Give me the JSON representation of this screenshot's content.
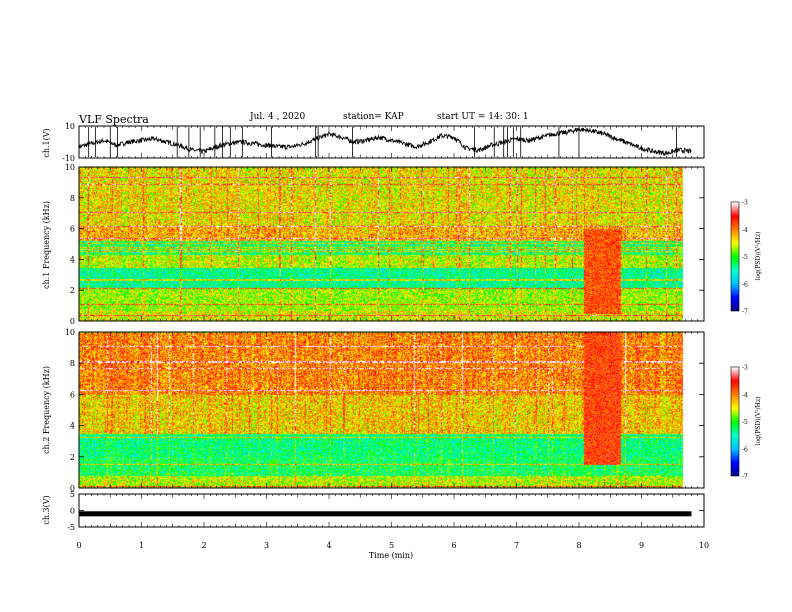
{
  "header": {
    "title": "VLF Spectra",
    "date": "Jul. 4 , 2020",
    "station": "station= KAP",
    "start": "start UT = 14: 30: 1"
  },
  "chart_data": [
    {
      "type": "line",
      "ylabel": "ch.1(V)",
      "ylim": [
        -10,
        10
      ],
      "ytick_labels": [
        "10",
        "-10"
      ],
      "xlim": [
        0,
        10
      ],
      "series": [
        {
          "x": [
            0,
            0.2,
            0.4,
            0.6,
            0.8,
            1,
            1.2,
            1.4,
            1.6,
            1.8,
            2,
            2.2,
            2.4,
            2.6,
            2.8,
            3,
            3.2,
            3.4,
            3.6,
            3.8,
            4,
            4.2,
            4.4,
            4.6,
            4.8,
            5,
            5.2,
            5.4,
            5.6,
            5.8,
            6,
            6.2,
            6.4,
            6.6,
            6.8,
            7,
            7.2,
            7.4,
            7.6,
            7.8,
            8,
            8.2,
            8.4,
            8.6,
            8.8,
            9,
            9.2,
            9.4,
            9.6,
            9.8
          ],
          "values": [
            -3,
            -1,
            1,
            -2,
            0,
            1,
            2,
            0,
            -2,
            -5,
            -6,
            -3,
            -1,
            0,
            -1,
            -2,
            -3,
            -3,
            -1,
            2,
            5,
            3,
            0,
            1,
            3,
            1,
            -1,
            -3,
            0,
            4,
            3,
            -4,
            -5,
            -2,
            0,
            2,
            1,
            3,
            5,
            6,
            8,
            7,
            5,
            2,
            -1,
            -4,
            -6,
            -7,
            -5,
            -6
          ]
        }
      ]
    },
    {
      "type": "heatmap",
      "ylabel": "ch.1 Frequency (kHz)",
      "ylim": [
        0,
        10
      ],
      "ytick_labels": [
        "0",
        "2",
        "4",
        "6",
        "8",
        "10"
      ],
      "xlim": [
        0,
        10
      ],
      "colorbar": {
        "label": "log(PSD)(V²/Hz)",
        "range": [
          -7,
          -3
        ],
        "tick_labels": [
          "-3",
          "-4",
          "-5",
          "-6",
          "-7"
        ]
      },
      "dominant_log_psd": [
        {
          "freq_khz": [
            0,
            0.7
          ],
          "value": -4.5
        },
        {
          "freq_khz": [
            0.7,
            2.2
          ],
          "value": -4.7
        },
        {
          "freq_khz": [
            2.2,
            3.5
          ],
          "value": -5.4
        },
        {
          "freq_khz": [
            3.5,
            4.3
          ],
          "value": -4.6
        },
        {
          "freq_khz": [
            4.3,
            5.2
          ],
          "value": -5.2
        },
        {
          "freq_khz": [
            5.2,
            6.2
          ],
          "value": -4.2
        },
        {
          "freq_khz": [
            6.2,
            10
          ],
          "value": -4.4
        }
      ],
      "burst": {
        "time_min": [
          8.2,
          8.8
        ],
        "freq_khz": [
          0.5,
          6
        ],
        "value": -3.8
      }
    },
    {
      "type": "heatmap",
      "ylabel": "ch.2 Frequency (kHz)",
      "ylim": [
        0,
        10
      ],
      "ytick_labels": [
        "0",
        "2",
        "4",
        "6",
        "8",
        "10"
      ],
      "xlim": [
        0,
        10
      ],
      "colorbar": {
        "label": "log(PSD)(V²/Hz)",
        "range": [
          -7,
          -3
        ],
        "tick_labels": [
          "-3",
          "-4",
          "-5",
          "-6",
          "-7"
        ]
      },
      "dominant_log_psd": [
        {
          "freq_khz": [
            0,
            0.8
          ],
          "value": -4.6
        },
        {
          "freq_khz": [
            0.8,
            2.0
          ],
          "value": -5.2
        },
        {
          "freq_khz": [
            2.0,
            3.5
          ],
          "value": -5.3
        },
        {
          "freq_khz": [
            3.5,
            6.0
          ],
          "value": -4.3
        },
        {
          "freq_khz": [
            6.0,
            10
          ],
          "value": -4.0
        }
      ],
      "burst": {
        "time_min": [
          8.2,
          8.8
        ],
        "freq_khz": [
          1.5,
          10
        ],
        "value": -3.7
      }
    },
    {
      "type": "line",
      "ylabel": "ch.3(V)",
      "ylim": [
        -5,
        5
      ],
      "ytick_labels": [
        "5",
        "0",
        "-5"
      ],
      "xlim": [
        0,
        10
      ],
      "xlabel": "Time (min)",
      "xtick_labels": [
        "0",
        "1",
        "2",
        "3",
        "4",
        "5",
        "6",
        "7",
        "8",
        "9",
        "10"
      ],
      "series": [
        {
          "x": [
            0,
            9.8
          ],
          "values": [
            -1,
            -1
          ]
        }
      ]
    }
  ],
  "colors": {
    "colormap": [
      "#000080",
      "#0000ff",
      "#00c0ff",
      "#00ffcc",
      "#00ff00",
      "#ffff00",
      "#ff8000",
      "#ff0000",
      "#ffffff"
    ]
  }
}
